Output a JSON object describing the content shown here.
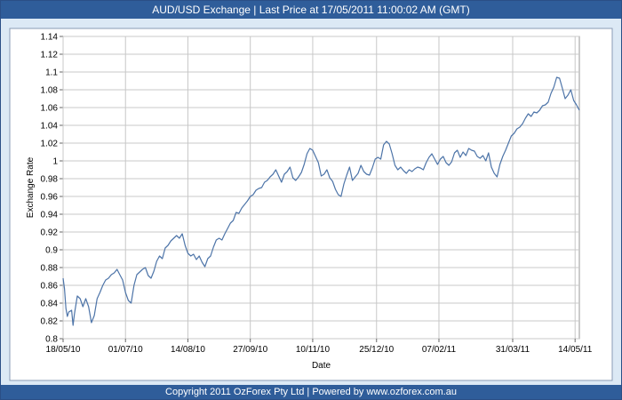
{
  "header": {
    "title": "AUD/USD Exchange |  Last Price at 17/05/2011 11:00:02 AM (GMT)"
  },
  "footer": {
    "text": "Copyright 2011 OzForex Pty Ltd | Powered by www.ozforex.com.au"
  },
  "colors": {
    "bar": "#2f5d9a",
    "frame_bg": "#dce9f5",
    "plot_bg": "#ffffff",
    "line": "#4d74a8",
    "grid": "#c8c8c8"
  },
  "chart_data": {
    "type": "line",
    "title": "AUD/USD Exchange |  Last Price at 17/05/2011 11:00:02 AM (GMT)",
    "xlabel": "Date",
    "ylabel": "Exchange Rate",
    "ylim": [
      0.8,
      1.14
    ],
    "yticks": [
      "0.8",
      "0.82",
      "0.84",
      "0.86",
      "0.88",
      "0.9",
      "0.92",
      "0.94",
      "0.96",
      "0.98",
      "1",
      "1.02",
      "1.04",
      "1.06",
      "1.08",
      "1.1",
      "1.12",
      "1.14"
    ],
    "xticks": [
      {
        "label": "18/05/10",
        "date": "2010-05-18"
      },
      {
        "label": "01/07/10",
        "date": "2010-07-01"
      },
      {
        "label": "14/08/10",
        "date": "2010-08-14"
      },
      {
        "label": "27/09/10",
        "date": "2010-09-27"
      },
      {
        "label": "10/11/10",
        "date": "2010-11-10"
      },
      {
        "label": "25/12/10",
        "date": "2010-12-25"
      },
      {
        "label": "07/02/11",
        "date": "2011-02-07"
      },
      {
        "label": "31/03/11",
        "date": "2011-03-31"
      },
      {
        "label": "14/05/11",
        "date": "2011-05-14"
      }
    ],
    "xlim": [
      "2010-05-18",
      "2011-05-17"
    ],
    "grid": true,
    "legend": "none",
    "series": [
      {
        "points": [
          [
            "2010-05-18",
            0.868
          ],
          [
            "2010-05-19",
            0.856
          ],
          [
            "2010-05-20",
            0.834
          ],
          [
            "2010-05-21",
            0.825
          ],
          [
            "2010-05-22",
            0.83
          ],
          [
            "2010-05-24",
            0.832
          ],
          [
            "2010-05-25",
            0.815
          ],
          [
            "2010-05-26",
            0.828
          ],
          [
            "2010-05-28",
            0.848
          ],
          [
            "2010-05-30",
            0.845
          ],
          [
            "2010-06-01",
            0.836
          ],
          [
            "2010-06-03",
            0.845
          ],
          [
            "2010-06-05",
            0.836
          ],
          [
            "2010-06-07",
            0.818
          ],
          [
            "2010-06-09",
            0.826
          ],
          [
            "2010-06-11",
            0.845
          ],
          [
            "2010-06-13",
            0.852
          ],
          [
            "2010-06-15",
            0.86
          ],
          [
            "2010-06-17",
            0.866
          ],
          [
            "2010-06-19",
            0.868
          ],
          [
            "2010-06-21",
            0.872
          ],
          [
            "2010-06-23",
            0.874
          ],
          [
            "2010-06-25",
            0.878
          ],
          [
            "2010-06-27",
            0.872
          ],
          [
            "2010-06-29",
            0.866
          ],
          [
            "2010-07-01",
            0.852
          ],
          [
            "2010-07-03",
            0.843
          ],
          [
            "2010-07-05",
            0.84
          ],
          [
            "2010-07-07",
            0.86
          ],
          [
            "2010-07-09",
            0.872
          ],
          [
            "2010-07-11",
            0.875
          ],
          [
            "2010-07-13",
            0.878
          ],
          [
            "2010-07-15",
            0.88
          ],
          [
            "2010-07-17",
            0.871
          ],
          [
            "2010-07-19",
            0.868
          ],
          [
            "2010-07-21",
            0.876
          ],
          [
            "2010-07-23",
            0.887
          ],
          [
            "2010-07-25",
            0.893
          ],
          [
            "2010-07-27",
            0.89
          ],
          [
            "2010-07-29",
            0.902
          ],
          [
            "2010-07-31",
            0.905
          ],
          [
            "2010-08-02",
            0.91
          ],
          [
            "2010-08-04",
            0.913
          ],
          [
            "2010-08-06",
            0.916
          ],
          [
            "2010-08-08",
            0.913
          ],
          [
            "2010-08-10",
            0.918
          ],
          [
            "2010-08-12",
            0.905
          ],
          [
            "2010-08-14",
            0.896
          ],
          [
            "2010-08-16",
            0.893
          ],
          [
            "2010-08-18",
            0.895
          ],
          [
            "2010-08-20",
            0.889
          ],
          [
            "2010-08-22",
            0.893
          ],
          [
            "2010-08-24",
            0.886
          ],
          [
            "2010-08-26",
            0.881
          ],
          [
            "2010-08-28",
            0.89
          ],
          [
            "2010-08-30",
            0.893
          ],
          [
            "2010-09-01",
            0.903
          ],
          [
            "2010-09-03",
            0.911
          ],
          [
            "2010-09-05",
            0.913
          ],
          [
            "2010-09-07",
            0.911
          ],
          [
            "2010-09-09",
            0.918
          ],
          [
            "2010-09-11",
            0.924
          ],
          [
            "2010-09-13",
            0.93
          ],
          [
            "2010-09-15",
            0.933
          ],
          [
            "2010-09-17",
            0.942
          ],
          [
            "2010-09-19",
            0.941
          ],
          [
            "2010-09-21",
            0.947
          ],
          [
            "2010-09-23",
            0.951
          ],
          [
            "2010-09-25",
            0.955
          ],
          [
            "2010-09-27",
            0.96
          ],
          [
            "2010-09-29",
            0.962
          ],
          [
            "2010-10-01",
            0.967
          ],
          [
            "2010-10-03",
            0.969
          ],
          [
            "2010-10-05",
            0.97
          ],
          [
            "2010-10-07",
            0.976
          ],
          [
            "2010-10-09",
            0.978
          ],
          [
            "2010-10-11",
            0.982
          ],
          [
            "2010-10-13",
            0.985
          ],
          [
            "2010-10-15",
            0.99
          ],
          [
            "2010-10-17",
            0.983
          ],
          [
            "2010-10-19",
            0.976
          ],
          [
            "2010-10-21",
            0.985
          ],
          [
            "2010-10-23",
            0.988
          ],
          [
            "2010-10-25",
            0.993
          ],
          [
            "2010-10-27",
            0.981
          ],
          [
            "2010-10-29",
            0.978
          ],
          [
            "2010-10-31",
            0.982
          ],
          [
            "2010-11-02",
            0.987
          ],
          [
            "2010-11-04",
            0.996
          ],
          [
            "2010-11-06",
            1.008
          ],
          [
            "2010-11-08",
            1.014
          ],
          [
            "2010-11-10",
            1.012
          ],
          [
            "2010-11-12",
            1.005
          ],
          [
            "2010-11-14",
            0.998
          ],
          [
            "2010-11-16",
            0.983
          ],
          [
            "2010-11-18",
            0.985
          ],
          [
            "2010-11-20",
            0.99
          ],
          [
            "2010-11-22",
            0.981
          ],
          [
            "2010-11-24",
            0.977
          ],
          [
            "2010-11-26",
            0.968
          ],
          [
            "2010-11-28",
            0.962
          ],
          [
            "2010-11-30",
            0.96
          ],
          [
            "2010-12-02",
            0.974
          ],
          [
            "2010-12-04",
            0.984
          ],
          [
            "2010-12-06",
            0.993
          ],
          [
            "2010-12-08",
            0.978
          ],
          [
            "2010-12-10",
            0.982
          ],
          [
            "2010-12-12",
            0.986
          ],
          [
            "2010-12-14",
            0.995
          ],
          [
            "2010-12-16",
            0.988
          ],
          [
            "2010-12-18",
            0.985
          ],
          [
            "2010-12-20",
            0.984
          ],
          [
            "2010-12-22",
            0.992
          ],
          [
            "2010-12-24",
            1.002
          ],
          [
            "2010-12-26",
            1.004
          ],
          [
            "2010-12-28",
            1.002
          ],
          [
            "2010-12-30",
            1.018
          ],
          [
            "2011-01-01",
            1.022
          ],
          [
            "2011-01-03",
            1.019
          ],
          [
            "2011-01-05",
            1.008
          ],
          [
            "2011-01-07",
            0.995
          ],
          [
            "2011-01-09",
            0.99
          ],
          [
            "2011-01-11",
            0.993
          ],
          [
            "2011-01-13",
            0.989
          ],
          [
            "2011-01-15",
            0.986
          ],
          [
            "2011-01-17",
            0.99
          ],
          [
            "2011-01-19",
            0.988
          ],
          [
            "2011-01-21",
            0.991
          ],
          [
            "2011-01-23",
            0.993
          ],
          [
            "2011-01-25",
            0.992
          ],
          [
            "2011-01-27",
            0.99
          ],
          [
            "2011-01-29",
            0.998
          ],
          [
            "2011-01-31",
            1.004
          ],
          [
            "2011-02-02",
            1.008
          ],
          [
            "2011-02-04",
            1.002
          ],
          [
            "2011-02-06",
            0.996
          ],
          [
            "2011-02-08",
            1.002
          ],
          [
            "2011-02-10",
            1.005
          ],
          [
            "2011-02-12",
            0.998
          ],
          [
            "2011-02-14",
            0.995
          ],
          [
            "2011-02-16",
            0.999
          ],
          [
            "2011-02-18",
            1.009
          ],
          [
            "2011-02-20",
            1.012
          ],
          [
            "2011-02-22",
            1.004
          ],
          [
            "2011-02-24",
            1.01
          ],
          [
            "2011-02-26",
            1.006
          ],
          [
            "2011-02-28",
            1.014
          ],
          [
            "2011-03-02",
            1.012
          ],
          [
            "2011-03-04",
            1.011
          ],
          [
            "2011-03-06",
            1.005
          ],
          [
            "2011-03-08",
            1.003
          ],
          [
            "2011-03-10",
            1.006
          ],
          [
            "2011-03-12",
            1.0
          ],
          [
            "2011-03-14",
            1.009
          ],
          [
            "2011-03-16",
            0.993
          ],
          [
            "2011-03-18",
            0.986
          ],
          [
            "2011-03-20",
            0.982
          ],
          [
            "2011-03-22",
            0.996
          ],
          [
            "2011-03-24",
            1.005
          ],
          [
            "2011-03-26",
            1.012
          ],
          [
            "2011-03-28",
            1.02
          ],
          [
            "2011-03-30",
            1.028
          ],
          [
            "2011-04-01",
            1.031
          ],
          [
            "2011-04-03",
            1.036
          ],
          [
            "2011-04-05",
            1.038
          ],
          [
            "2011-04-07",
            1.042
          ],
          [
            "2011-04-09",
            1.048
          ],
          [
            "2011-04-11",
            1.053
          ],
          [
            "2011-04-13",
            1.05
          ],
          [
            "2011-04-15",
            1.055
          ],
          [
            "2011-04-17",
            1.054
          ],
          [
            "2011-04-19",
            1.057
          ],
          [
            "2011-04-21",
            1.062
          ],
          [
            "2011-04-23",
            1.063
          ],
          [
            "2011-04-25",
            1.066
          ],
          [
            "2011-04-27",
            1.076
          ],
          [
            "2011-04-29",
            1.083
          ],
          [
            "2011-05-01",
            1.094
          ],
          [
            "2011-05-03",
            1.093
          ],
          [
            "2011-05-05",
            1.082
          ],
          [
            "2011-05-07",
            1.07
          ],
          [
            "2011-05-09",
            1.074
          ],
          [
            "2011-05-11",
            1.08
          ],
          [
            "2011-05-13",
            1.068
          ],
          [
            "2011-05-15",
            1.063
          ],
          [
            "2011-05-17",
            1.057
          ]
        ]
      }
    ]
  }
}
